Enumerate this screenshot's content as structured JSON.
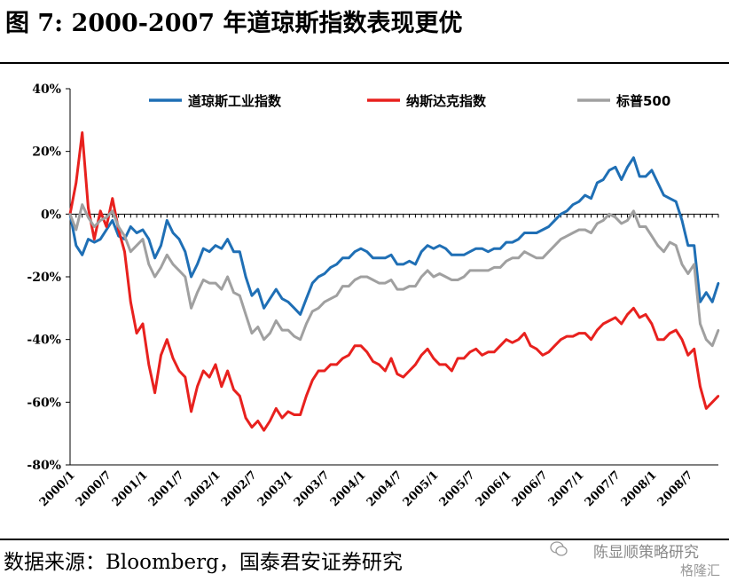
{
  "header": {
    "title": "图 7: 2000-2007 年道琼斯指数表现更优"
  },
  "footer": {
    "source": "数据来源：Bloomberg，国泰君安证券研究"
  },
  "watermark": {
    "text": "陈显顺策略研究",
    "sub": "格隆汇"
  },
  "chart_data": {
    "type": "line",
    "title": "",
    "xlabel": "",
    "ylabel": "",
    "y_unit": "%",
    "ylim": [
      -80,
      40
    ],
    "yticks": [
      40,
      20,
      0,
      -20,
      -40,
      -60,
      -80
    ],
    "ytick_labels": [
      "40%",
      "20%",
      "0%",
      "-20%",
      "-40%",
      "-60%",
      "-80%"
    ],
    "xlim": [
      "2000-01",
      "2008-12"
    ],
    "xtick_labels": [
      "2000/1",
      "2000/7",
      "2001/1",
      "2001/7",
      "2002/1",
      "2002/7",
      "2003/1",
      "2003/7",
      "2004/1",
      "2004/7",
      "2005/1",
      "2005/7",
      "2006/1",
      "2006/7",
      "2007/1",
      "2007/7",
      "2008/1",
      "2008/7"
    ],
    "grid": false,
    "legend_position": "top",
    "x": [
      "2000-01",
      "2000-02",
      "2000-03",
      "2000-04",
      "2000-05",
      "2000-06",
      "2000-07",
      "2000-08",
      "2000-09",
      "2000-10",
      "2000-11",
      "2000-12",
      "2001-01",
      "2001-02",
      "2001-03",
      "2001-04",
      "2001-05",
      "2001-06",
      "2001-07",
      "2001-08",
      "2001-09",
      "2001-10",
      "2001-11",
      "2001-12",
      "2002-01",
      "2002-02",
      "2002-03",
      "2002-04",
      "2002-05",
      "2002-06",
      "2002-07",
      "2002-08",
      "2002-09",
      "2002-10",
      "2002-11",
      "2002-12",
      "2003-01",
      "2003-02",
      "2003-03",
      "2003-04",
      "2003-05",
      "2003-06",
      "2003-07",
      "2003-08",
      "2003-09",
      "2003-10",
      "2003-11",
      "2003-12",
      "2004-01",
      "2004-02",
      "2004-03",
      "2004-04",
      "2004-05",
      "2004-06",
      "2004-07",
      "2004-08",
      "2004-09",
      "2004-10",
      "2004-11",
      "2004-12",
      "2005-01",
      "2005-02",
      "2005-03",
      "2005-04",
      "2005-05",
      "2005-06",
      "2005-07",
      "2005-08",
      "2005-09",
      "2005-10",
      "2005-11",
      "2005-12",
      "2006-01",
      "2006-02",
      "2006-03",
      "2006-04",
      "2006-05",
      "2006-06",
      "2006-07",
      "2006-08",
      "2006-09",
      "2006-10",
      "2006-11",
      "2006-12",
      "2007-01",
      "2007-02",
      "2007-03",
      "2007-04",
      "2007-05",
      "2007-06",
      "2007-07",
      "2007-08",
      "2007-09",
      "2007-10",
      "2007-11",
      "2007-12",
      "2008-01",
      "2008-02",
      "2008-03",
      "2008-04",
      "2008-05",
      "2008-06",
      "2008-07",
      "2008-08",
      "2008-09",
      "2008-10",
      "2008-11",
      "2008-12"
    ],
    "series": [
      {
        "name": "道琼斯工业指数",
        "color": "#1f6fb5",
        "values": [
          0,
          -10,
          -13,
          -8,
          -9,
          -8,
          -5,
          -2,
          -7,
          -8,
          -4,
          -6,
          -5,
          -8,
          -14,
          -10,
          -2,
          -6,
          -8,
          -12,
          -20,
          -16,
          -11,
          -12,
          -10,
          -11,
          -8,
          -12,
          -12,
          -20,
          -26,
          -24,
          -30,
          -27,
          -24,
          -27,
          -28,
          -30,
          -32,
          -27,
          -22,
          -20,
          -19,
          -17,
          -16,
          -14,
          -14,
          -12,
          -11,
          -12,
          -14,
          -14,
          -14,
          -13,
          -16,
          -16,
          -15,
          -16,
          -12,
          -10,
          -11,
          -10,
          -11,
          -13,
          -13,
          -13,
          -12,
          -11,
          -11,
          -12,
          -11,
          -11,
          -9,
          -9,
          -8,
          -6,
          -6,
          -6,
          -5,
          -4,
          -2,
          0,
          1,
          3,
          4,
          6,
          5,
          10,
          11,
          14,
          15,
          11,
          15,
          18,
          12,
          12,
          14,
          10,
          6,
          5,
          4,
          -2,
          -10,
          -10,
          -28,
          -25,
          -28,
          -22
        ]
      },
      {
        "name": "纳斯达克指数",
        "color": "#e8211e",
        "values": [
          0,
          10,
          26,
          2,
          -8,
          1,
          -4,
          5,
          -5,
          -12,
          -28,
          -38,
          -35,
          -48,
          -57,
          -45,
          -40,
          -46,
          -50,
          -52,
          -63,
          -55,
          -50,
          -52,
          -48,
          -55,
          -50,
          -56,
          -58,
          -65,
          -68,
          -66,
          -69,
          -66,
          -62,
          -65,
          -63,
          -64,
          -64,
          -58,
          -53,
          -50,
          -50,
          -48,
          -48,
          -46,
          -45,
          -42,
          -42,
          -44,
          -47,
          -48,
          -50,
          -46,
          -51,
          -52,
          -50,
          -48,
          -45,
          -43,
          -46,
          -48,
          -48,
          -50,
          -46,
          -46,
          -44,
          -43,
          -45,
          -44,
          -44,
          -42,
          -40,
          -41,
          -40,
          -38,
          -42,
          -43,
          -45,
          -44,
          -42,
          -40,
          -39,
          -39,
          -38,
          -38,
          -40,
          -37,
          -35,
          -34,
          -33,
          -35,
          -32,
          -30,
          -33,
          -32,
          -35,
          -40,
          -40,
          -38,
          -37,
          -40,
          -45,
          -43,
          -55,
          -62,
          -60,
          -58
        ]
      },
      {
        "name": "标普500",
        "color": "#a0a0a0",
        "values": [
          0,
          -5,
          3,
          -1,
          -4,
          -2,
          -1,
          1,
          -4,
          -7,
          -12,
          -10,
          -8,
          -16,
          -20,
          -17,
          -13,
          -16,
          -18,
          -20,
          -30,
          -25,
          -21,
          -22,
          -22,
          -24,
          -20,
          -25,
          -26,
          -32,
          -38,
          -36,
          -40,
          -38,
          -34,
          -37,
          -37,
          -39,
          -40,
          -35,
          -31,
          -30,
          -28,
          -27,
          -26,
          -23,
          -23,
          -21,
          -20,
          -20,
          -21,
          -22,
          -22,
          -21,
          -24,
          -24,
          -23,
          -23,
          -20,
          -18,
          -20,
          -19,
          -20,
          -21,
          -21,
          -20,
          -18,
          -18,
          -18,
          -18,
          -17,
          -17,
          -15,
          -14,
          -14,
          -12,
          -13,
          -14,
          -14,
          -12,
          -10,
          -8,
          -7,
          -6,
          -5,
          -5,
          -6,
          -3,
          -2,
          0,
          -1,
          -3,
          -2,
          1,
          -4,
          -4,
          -7,
          -10,
          -12,
          -9,
          -10,
          -16,
          -19,
          -16,
          -35,
          -40,
          -42,
          -37
        ]
      }
    ]
  }
}
